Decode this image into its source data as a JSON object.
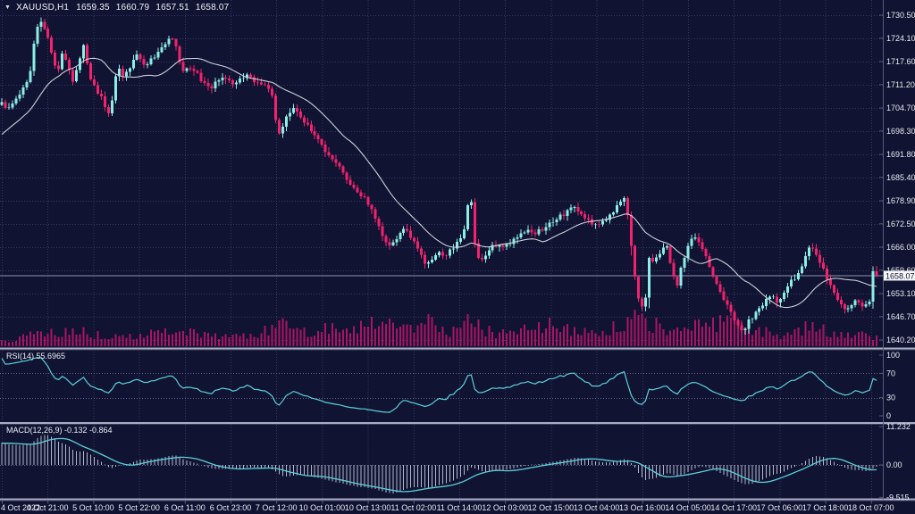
{
  "window": {
    "collapse_icon": "▼",
    "symbol_period": "XAUUSD,H1",
    "open": "1659.35",
    "high": "1660.79",
    "low": "1657.51",
    "close": "1658.07"
  },
  "price_axis": {
    "labels": [
      "1730.50",
      "1724.10",
      "1717.60",
      "1711.20",
      "1704.70",
      "1698.30",
      "1691.80",
      "1685.40",
      "1678.90",
      "1672.50",
      "1666.00",
      "1659.60",
      "1653.10",
      "1646.70",
      "1640.20"
    ],
    "current_price_tag": "1658.07"
  },
  "time_axis": {
    "labels": [
      "4 Oct 2022",
      "4 Oct 21:00",
      "5 Oct 10:00",
      "5 Oct 22:00",
      "6 Oct 11:00",
      "6 Oct 23:00",
      "7 Oct 12:00",
      "10 Oct 01:00",
      "10 Oct 13:00",
      "11 Oct 02:00",
      "11 Oct 14:00",
      "12 Oct 03:00",
      "12 Oct 15:00",
      "13 Oct 04:00",
      "13 Oct 16:00",
      "14 Oct 05:00",
      "14 Oct 17:00",
      "17 Oct 06:00",
      "17 Oct 18:00",
      "18 Oct 07:00"
    ]
  },
  "panels": {
    "rsi": {
      "label": "RSI(14) 55.6965",
      "last_value": 55.6965,
      "level_labels": [
        "100",
        "70",
        "30",
        "0"
      ],
      "level_values": [
        100,
        70,
        30,
        0
      ],
      "dotted_levels": [
        70,
        30
      ]
    },
    "macd": {
      "label": "MACD(12,26,9) -0.132 -0.864",
      "axis_labels": [
        "11.232",
        "0.00",
        "-9.515"
      ],
      "axis_values": [
        11.232,
        0,
        -9.515
      ]
    }
  },
  "colors": {
    "bg": "#101331",
    "grid": "#353b61",
    "bull": "#8ceee6",
    "bear": "#f2226f",
    "ma": "#cdd0da",
    "volume": "#aa1464",
    "line": "#5bd0dc",
    "hist": "#b2b7cb",
    "separator": "#a9adc0",
    "separator_dark": "#3a3f63",
    "axis_line": "#565b7c",
    "text": "#e9ebf3",
    "price_line": "#9094ac",
    "tag_bg": "#f7f8fb",
    "tag_text": "#101331",
    "levels": "#60668c"
  },
  "chart_data": {
    "type": "candlestick",
    "symbol": "XAUUSD",
    "timeframe": "H1",
    "bars": 247,
    "price_range": [
      1640.2,
      1730.5
    ],
    "x_range_labels": [
      "4 Oct 2022",
      "18 Oct 07:00"
    ],
    "last_bar": {
      "open": 1659.35,
      "high": 1660.79,
      "low": 1657.51,
      "close": 1658.07
    },
    "indicators": {
      "ma_period": 20,
      "rsi": {
        "period": 14,
        "last": 55.6965,
        "scale": [
          0,
          100
        ]
      },
      "macd": {
        "fast": 12,
        "slow": 26,
        "signal": 9,
        "last_main": -0.132,
        "last_signal": -0.864,
        "scale": [
          -9.515,
          11.232
        ]
      }
    },
    "close_path": [
      [
        0,
        1707
      ],
      [
        8,
        1704.5
      ],
      [
        16,
        1706.5
      ],
      [
        24,
        1709
      ],
      [
        33,
        1714
      ],
      [
        37,
        1721
      ],
      [
        41,
        1727
      ],
      [
        45,
        1729
      ],
      [
        49,
        1727
      ],
      [
        53,
        1725
      ],
      [
        57,
        1721
      ],
      [
        61,
        1717
      ],
      [
        65,
        1714.5
      ],
      [
        70,
        1720.5
      ],
      [
        74,
        1718
      ],
      [
        78,
        1715
      ],
      [
        82,
        1712
      ],
      [
        88,
        1717
      ],
      [
        94,
        1722
      ],
      [
        98,
        1717
      ],
      [
        102,
        1712.5
      ],
      [
        108,
        1709.5
      ],
      [
        114,
        1707.5
      ],
      [
        120,
        1704
      ],
      [
        123,
        1703
      ],
      [
        127,
        1710
      ],
      [
        131,
        1716
      ],
      [
        139,
        1713.5
      ],
      [
        147,
        1717
      ],
      [
        155,
        1719.5
      ],
      [
        163,
        1716
      ],
      [
        171,
        1718.5
      ],
      [
        179,
        1721
      ],
      [
        187,
        1723
      ],
      [
        195,
        1724.5
      ],
      [
        199,
        1720
      ],
      [
        203,
        1714
      ],
      [
        211,
        1716.5
      ],
      [
        219,
        1714.5
      ],
      [
        227,
        1712
      ],
      [
        235,
        1709.5
      ],
      [
        243,
        1712.5
      ],
      [
        251,
        1714
      ],
      [
        259,
        1711
      ],
      [
        267,
        1712.5
      ],
      [
        275,
        1714
      ],
      [
        283,
        1712.5
      ],
      [
        291,
        1712
      ],
      [
        299,
        1710.5
      ],
      [
        305,
        1707.5
      ],
      [
        309,
        1701
      ],
      [
        313,
        1697
      ],
      [
        317,
        1700
      ],
      [
        321,
        1703
      ],
      [
        329,
        1704.5
      ],
      [
        337,
        1702
      ],
      [
        345,
        1699.5
      ],
      [
        353,
        1697
      ],
      [
        361,
        1694
      ],
      [
        369,
        1691.5
      ],
      [
        377,
        1689
      ],
      [
        385,
        1686
      ],
      [
        393,
        1683.5
      ],
      [
        401,
        1681.5
      ],
      [
        409,
        1679
      ],
      [
        417,
        1676
      ],
      [
        423,
        1672.5
      ],
      [
        427,
        1669
      ],
      [
        433,
        1667
      ],
      [
        439,
        1666.5
      ],
      [
        445,
        1669
      ],
      [
        451,
        1671.5
      ],
      [
        457,
        1670
      ],
      [
        463,
        1668
      ],
      [
        469,
        1665.5
      ],
      [
        475,
        1662
      ],
      [
        479,
        1661
      ],
      [
        485,
        1663.5
      ],
      [
        491,
        1664.5
      ],
      [
        499,
        1664
      ],
      [
        507,
        1665.5
      ],
      [
        513,
        1667.5
      ],
      [
        517,
        1669
      ],
      [
        521,
        1671.5
      ],
      [
        525,
        1682
      ],
      [
        527,
        1679
      ],
      [
        531,
        1668
      ],
      [
        535,
        1663.5
      ],
      [
        541,
        1663
      ],
      [
        547,
        1665
      ],
      [
        553,
        1666.5
      ],
      [
        561,
        1666
      ],
      [
        569,
        1667
      ],
      [
        577,
        1668.5
      ],
      [
        585,
        1670
      ],
      [
        593,
        1670.5
      ],
      [
        601,
        1670
      ],
      [
        609,
        1671.5
      ],
      [
        617,
        1673
      ],
      [
        625,
        1674.5
      ],
      [
        633,
        1675.5
      ],
      [
        639,
        1677
      ],
      [
        645,
        1676.5
      ],
      [
        651,
        1675
      ],
      [
        659,
        1673.5
      ],
      [
        665,
        1672
      ],
      [
        673,
        1673
      ],
      [
        681,
        1674.5
      ],
      [
        689,
        1676.5
      ],
      [
        693,
        1678
      ],
      [
        697,
        1680
      ],
      [
        699,
        1679
      ],
      [
        703,
        1674
      ],
      [
        707,
        1665
      ],
      [
        711,
        1656
      ],
      [
        715,
        1650.5
      ],
      [
        719,
        1649
      ],
      [
        723,
        1652
      ],
      [
        727,
        1664.5
      ],
      [
        731,
        1662
      ],
      [
        738,
        1664
      ],
      [
        746,
        1666.5
      ],
      [
        752,
        1659
      ],
      [
        758,
        1655.5
      ],
      [
        764,
        1662
      ],
      [
        770,
        1666.5
      ],
      [
        776,
        1668.5
      ],
      [
        780,
        1668
      ],
      [
        788,
        1664.5
      ],
      [
        796,
        1659.5
      ],
      [
        804,
        1655
      ],
      [
        812,
        1650.5
      ],
      [
        820,
        1646.5
      ],
      [
        827,
        1643.5
      ],
      [
        831,
        1642
      ],
      [
        836,
        1645
      ],
      [
        844,
        1647
      ],
      [
        852,
        1649.5
      ],
      [
        860,
        1652
      ],
      [
        866,
        1652.5
      ],
      [
        872,
        1650
      ],
      [
        878,
        1654
      ],
      [
        884,
        1656
      ],
      [
        890,
        1657.5
      ],
      [
        896,
        1660
      ],
      [
        902,
        1664
      ],
      [
        907,
        1666.5
      ],
      [
        911,
        1664.5
      ],
      [
        917,
        1662
      ],
      [
        923,
        1659
      ],
      [
        929,
        1655.5
      ],
      [
        935,
        1652.5
      ],
      [
        941,
        1650
      ],
      [
        947,
        1648.5
      ],
      [
        953,
        1650
      ],
      [
        959,
        1651
      ],
      [
        965,
        1650
      ],
      [
        971,
        1649.5
      ],
      [
        975,
        1652
      ],
      [
        977,
        1657
      ],
      [
        979,
        1660.5
      ],
      [
        980,
        1659.35
      ],
      [
        981,
        1658.07
      ]
    ],
    "volume_path": [
      [
        0,
        5
      ],
      [
        30,
        12
      ],
      [
        55,
        18
      ],
      [
        80,
        20
      ],
      [
        100,
        14
      ],
      [
        130,
        10
      ],
      [
        160,
        13
      ],
      [
        190,
        18
      ],
      [
        200,
        22
      ],
      [
        225,
        13
      ],
      [
        250,
        10
      ],
      [
        280,
        12
      ],
      [
        305,
        22
      ],
      [
        313,
        26
      ],
      [
        330,
        16
      ],
      [
        350,
        18
      ],
      [
        370,
        20
      ],
      [
        390,
        22
      ],
      [
        410,
        26
      ],
      [
        425,
        30
      ],
      [
        440,
        24
      ],
      [
        460,
        21
      ],
      [
        477,
        28
      ],
      [
        495,
        19
      ],
      [
        510,
        17
      ],
      [
        525,
        32
      ],
      [
        535,
        24
      ],
      [
        550,
        16
      ],
      [
        565,
        14
      ],
      [
        580,
        18
      ],
      [
        600,
        20
      ],
      [
        615,
        24
      ],
      [
        630,
        21
      ],
      [
        645,
        17
      ],
      [
        660,
        14
      ],
      [
        675,
        18
      ],
      [
        695,
        23
      ],
      [
        711,
        38
      ],
      [
        718,
        33
      ],
      [
        726,
        28
      ],
      [
        740,
        21
      ],
      [
        755,
        17
      ],
      [
        770,
        20
      ],
      [
        785,
        24
      ],
      [
        800,
        27
      ],
      [
        815,
        30
      ],
      [
        830,
        26
      ],
      [
        845,
        19
      ],
      [
        860,
        16
      ],
      [
        875,
        14
      ],
      [
        890,
        16
      ],
      [
        906,
        24
      ],
      [
        920,
        20
      ],
      [
        935,
        17
      ],
      [
        950,
        14
      ],
      [
        962,
        12
      ],
      [
        972,
        15
      ],
      [
        981,
        10
      ]
    ]
  }
}
